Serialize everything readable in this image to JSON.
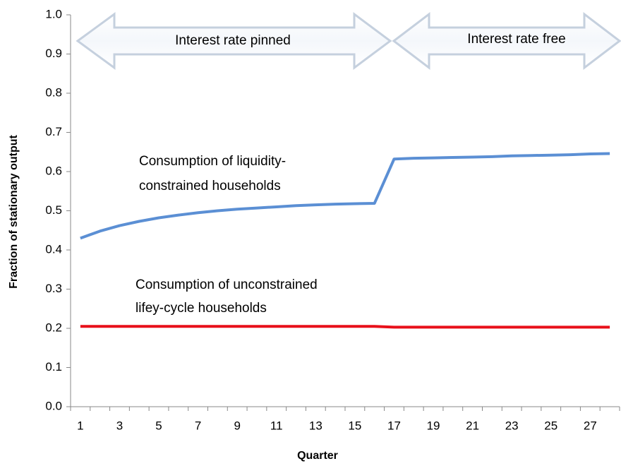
{
  "chart_data": {
    "type": "line",
    "xlabel": "Quarter",
    "ylabel": "Fraction of stationary output",
    "categories": [
      1,
      null,
      3,
      null,
      5,
      null,
      7,
      null,
      9,
      null,
      11,
      null,
      13,
      null,
      15,
      null,
      17,
      null,
      19,
      null,
      21,
      null,
      23,
      null,
      25,
      null,
      27,
      null
    ],
    "series": [
      {
        "name": "Consumption of liquidity-constrained households",
        "color": "#5b8fd4",
        "values": [
          0.43,
          0.448,
          0.462,
          0.473,
          0.482,
          0.489,
          0.495,
          0.5,
          0.504,
          0.507,
          0.51,
          0.513,
          0.515,
          0.517,
          0.518,
          0.519,
          0.632,
          0.634,
          0.635,
          0.636,
          0.637,
          0.638,
          0.64,
          0.641,
          0.642,
          0.643,
          0.645,
          0.646
        ]
      },
      {
        "name": "Consumption of unconstrained lifey-cycle households",
        "color": "#e8101a",
        "values": [
          0.205,
          0.205,
          0.205,
          0.205,
          0.205,
          0.205,
          0.205,
          0.205,
          0.205,
          0.205,
          0.205,
          0.205,
          0.205,
          0.205,
          0.205,
          0.205,
          0.203,
          0.203,
          0.203,
          0.203,
          0.203,
          0.203,
          0.203,
          0.203,
          0.203,
          0.203,
          0.203,
          0.203
        ]
      }
    ],
    "ylim": [
      0,
      1
    ],
    "yticks": [
      {
        "value": 0,
        "label": "0.0"
      },
      0.1,
      0.2,
      0.3,
      0.4,
      0.5,
      0.6,
      0.7,
      0.8,
      0.9,
      {
        "value": 1,
        "label": "1.0"
      }
    ],
    "annotations": [
      "Interest rate pinned",
      "Interest rate free",
      "Consumption of liquidity-",
      "constrained households",
      "Consumption of unconstrained",
      "lifey-cycle households"
    ]
  }
}
